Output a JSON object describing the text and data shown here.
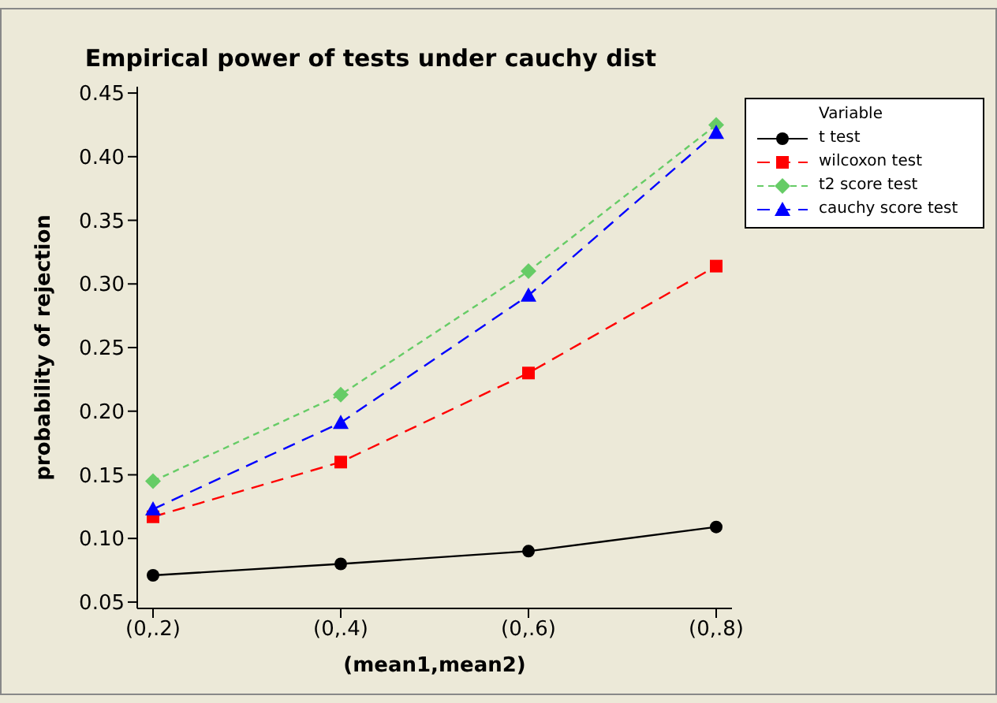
{
  "chart_data": {
    "type": "line",
    "title": "Empirical power of tests under cauchy dist",
    "xlabel": "(mean1,mean2)",
    "ylabel": "probability of rejection",
    "legend_title": "Variable",
    "categories": [
      "(0,.2)",
      "(0,.4)",
      "(0,.6)",
      "(0,.8)"
    ],
    "series": [
      {
        "name": "t test",
        "color": "#000000",
        "marker": "circle",
        "line_style": "solid",
        "values": [
          0.071,
          0.08,
          0.09,
          0.109
        ]
      },
      {
        "name": "wilcoxon test",
        "color": "#ff0000",
        "marker": "square",
        "line_style": "dashed",
        "values": [
          0.117,
          0.16,
          0.23,
          0.314
        ]
      },
      {
        "name": "t2 score test",
        "color": "#66cc66",
        "marker": "diamond",
        "line_style": "dotted",
        "values": [
          0.145,
          0.213,
          0.31,
          0.425
        ]
      },
      {
        "name": "cauchy score test",
        "color": "#0000ff",
        "marker": "triangle",
        "line_style": "dashed",
        "values": [
          0.123,
          0.191,
          0.291,
          0.419
        ]
      }
    ],
    "ylim": [
      0.045,
      0.455
    ],
    "yticks": [
      {
        "value": 0.05,
        "label": "0.05"
      },
      {
        "value": 0.1,
        "label": "0.10"
      },
      {
        "value": 0.15,
        "label": "0.15"
      },
      {
        "value": 0.2,
        "label": "0.20"
      },
      {
        "value": 0.25,
        "label": "0.25"
      },
      {
        "value": 0.3,
        "label": "0.30"
      },
      {
        "value": 0.35,
        "label": "0.35"
      },
      {
        "value": 0.4,
        "label": "0.40"
      },
      {
        "value": 0.45,
        "label": "0.45"
      }
    ],
    "grid": false,
    "legend": "top right"
  }
}
